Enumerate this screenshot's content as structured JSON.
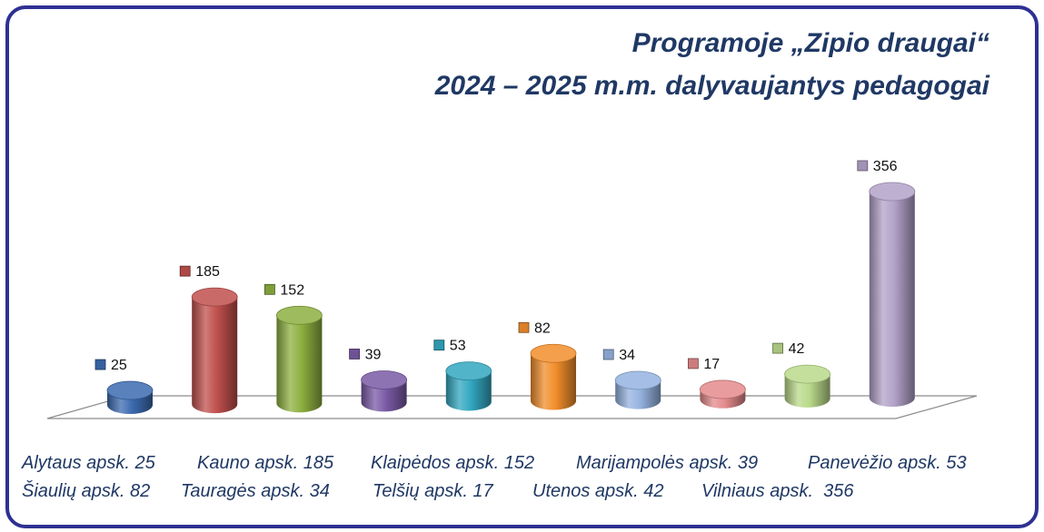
{
  "title": {
    "line1": "Programoje „Zipio draugai“",
    "line2": "2024 – 2025 m.m. dalyvaujantys pedagogai"
  },
  "chart_data": {
    "type": "bar",
    "title": "Programoje „Zipio draugai“ 2024 – 2025 m.m. dalyvaujantys pedagogai",
    "categories": [
      "Alytaus apsk.",
      "Kauno apsk.",
      "Klaipėdos apsk.",
      "Marijampolės apsk.",
      "Panevėžio apsk.",
      "Šiaulių apsk.",
      "Tauragės apsk.",
      "Telšių apsk.",
      "Utenos apsk.",
      "Vilniaus apsk."
    ],
    "values": [
      25,
      185,
      152,
      39,
      53,
      82,
      34,
      17,
      42,
      356
    ],
    "data_labels": [
      "25",
      "185",
      "152",
      "39",
      "53",
      "82",
      "34",
      "17",
      "42",
      "356"
    ],
    "colors": [
      "#3c6bb0",
      "#c0504d",
      "#8db040",
      "#7a5aa6",
      "#32a7c0",
      "#f28e2b",
      "#95b3e0",
      "#e48a8c",
      "#b9d98a",
      "#b3a2c9"
    ],
    "ylim": [
      0,
      356
    ],
    "grid": false,
    "style": "3d-cylinder"
  },
  "legend_rows": [
    [
      {
        "text": "Alytaus apsk. 25"
      },
      {
        "text": "Kauno apsk. 185"
      },
      {
        "text": "Klaipėdos apsk. 152"
      },
      {
        "text": "Marijampolės apsk. 39"
      },
      {
        "text": "Panevėžio apsk. 53"
      }
    ],
    [
      {
        "text": "Šiaulių apsk. 82"
      },
      {
        "text": "Tauragės apsk. 34"
      },
      {
        "text": "Telšių apsk. 17"
      },
      {
        "text": "Utenos apsk. 42"
      },
      {
        "text": "Vilniaus apsk.  356"
      }
    ]
  ]
}
